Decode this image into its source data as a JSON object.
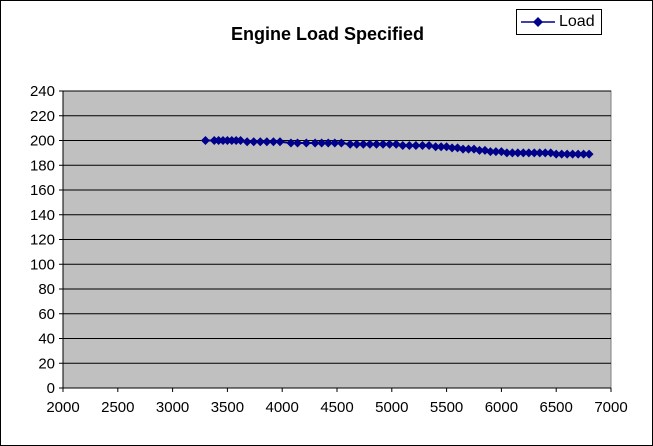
{
  "chart_data": {
    "type": "line",
    "title": "Engine Load Specified",
    "xlabel": "",
    "ylabel": "",
    "xlim": [
      2000,
      7000
    ],
    "ylim": [
      0,
      240
    ],
    "x_ticks": [
      2000,
      2500,
      3000,
      3500,
      4000,
      4500,
      5000,
      5500,
      6000,
      6500,
      7000
    ],
    "y_ticks": [
      0,
      20,
      40,
      60,
      80,
      100,
      120,
      140,
      160,
      180,
      200,
      220,
      240
    ],
    "grid": "horizontal",
    "legend_position": "top-right",
    "series": [
      {
        "name": "Load",
        "color": "#00008B",
        "marker": "diamond",
        "x": [
          3300,
          3380,
          3420,
          3460,
          3500,
          3540,
          3580,
          3620,
          3680,
          3740,
          3800,
          3860,
          3920,
          3980,
          4080,
          4140,
          4220,
          4300,
          4360,
          4420,
          4480,
          4540,
          4620,
          4680,
          4740,
          4800,
          4860,
          4920,
          4980,
          5040,
          5100,
          5160,
          5220,
          5280,
          5340,
          5400,
          5450,
          5500,
          5550,
          5600,
          5650,
          5700,
          5750,
          5800,
          5850,
          5900,
          5950,
          6000,
          6050,
          6100,
          6150,
          6200,
          6250,
          6300,
          6350,
          6400,
          6450,
          6500,
          6550,
          6600,
          6650,
          6700,
          6750,
          6800
        ],
        "y": [
          200,
          200,
          200,
          200,
          200,
          200,
          200,
          200,
          199,
          199,
          199,
          199,
          199,
          199,
          198,
          198,
          198,
          198,
          198,
          198,
          198,
          198,
          197,
          197,
          197,
          197,
          197,
          197,
          197,
          197,
          196,
          196,
          196,
          196,
          196,
          195,
          195,
          195,
          194,
          194,
          193,
          193,
          193,
          192,
          192,
          191,
          191,
          191,
          190,
          190,
          190,
          190,
          190,
          190,
          190,
          190,
          190,
          189,
          189,
          189,
          189,
          189,
          189,
          189
        ]
      }
    ]
  },
  "colors": {
    "plot_background": "#C0C0C0",
    "series_line": "#00008B",
    "gridline": "#000000"
  },
  "legend": {
    "label": "Load",
    "icon": "diamond-line-marker"
  }
}
